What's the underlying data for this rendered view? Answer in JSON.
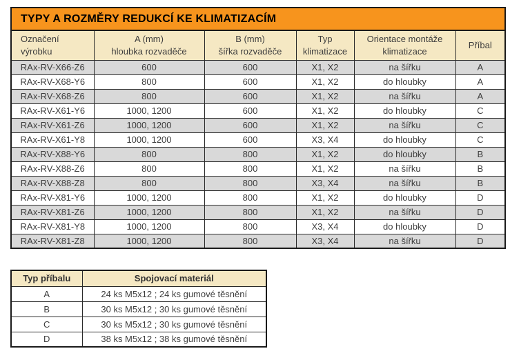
{
  "colors": {
    "title_bg": "#f7941d",
    "header_bg": "#f5e8c3",
    "stripe_bg": "#d9d9d9",
    "row_bg": "#ffffff",
    "border": "#1a1a1a",
    "text": "#3d3d3d"
  },
  "main_table": {
    "title": "TYPY A ROZMĚRY REDUKCÍ KE KLIMATIZACÍM",
    "headers": [
      "Označení\nvýrobku",
      "A (mm)\nhloubka rozvaděče",
      "B (mm)\nšířka rozvaděče",
      "Typ\nklimatizace",
      "Orientace montáže\nklimatizace",
      "Příbal"
    ],
    "rows": [
      [
        "RAx-RV-X66-Z6",
        "600",
        "600",
        "X1, X2",
        "na šířku",
        "A"
      ],
      [
        "RAx-RV-X68-Y6",
        "800",
        "600",
        "X1, X2",
        "do hloubky",
        "A"
      ],
      [
        "RAx-RV-X68-Z6",
        "800",
        "600",
        "X1, X2",
        "na šířku",
        "A"
      ],
      [
        "RAx-RV-X61-Y6",
        "1000, 1200",
        "600",
        "X1, X2",
        "do hloubky",
        "C"
      ],
      [
        "RAx-RV-X61-Z6",
        "1000, 1200",
        "600",
        "X1, X2",
        "na šířku",
        "C"
      ],
      [
        "RAx-RV-X61-Y8",
        "1000, 1200",
        "600",
        "X3, X4",
        "do hloubky",
        "C"
      ],
      [
        "RAx-RV-X88-Y6",
        "800",
        "800",
        "X1, X2",
        "do hloubky",
        "B"
      ],
      [
        "RAx-RV-X88-Z6",
        "800",
        "800",
        "X1, X2",
        "na šířku",
        "B"
      ],
      [
        "RAx-RV-X88-Z8",
        "800",
        "800",
        "X3, X4",
        "na šířku",
        "B"
      ],
      [
        "RAx-RV-X81-Y6",
        "1000, 1200",
        "800",
        "X1, X2",
        "do hloubky",
        "D"
      ],
      [
        "RAx-RV-X81-Z6",
        "1000, 1200",
        "800",
        "X1, X2",
        "na šířku",
        "D"
      ],
      [
        "RAx-RV-X81-Y8",
        "1000, 1200",
        "800",
        "X3, X4",
        "do hloubky",
        "D"
      ],
      [
        "RAx-RV-X81-Z8",
        "1000, 1200",
        "800",
        "X3, X4",
        "na šířku",
        "D"
      ]
    ]
  },
  "accessory_table": {
    "headers": [
      "Typ příbalu",
      "Spojovací materiál"
    ],
    "rows": [
      [
        "A",
        "24 ks M5x12 ; 24 ks gumové těsnění"
      ],
      [
        "B",
        "30 ks M5x12 ; 30 ks gumové těsnění"
      ],
      [
        "C",
        "30 ks M5x12 ; 30 ks gumové těsnění"
      ],
      [
        "D",
        "38 ks M5x12 ; 38 ks gumové těsnění"
      ]
    ]
  }
}
